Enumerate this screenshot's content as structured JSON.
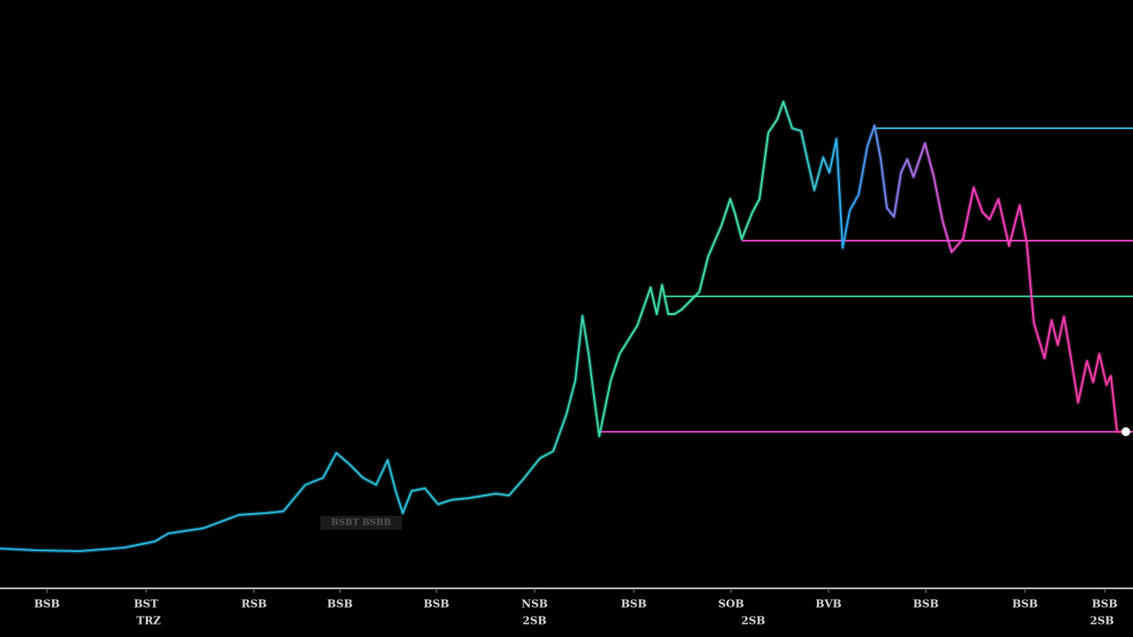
{
  "chart_data": {
    "type": "line",
    "xlim": [
      0,
      1280
    ],
    "ylim": [
      0,
      600
    ],
    "x": [
      0,
      40,
      90,
      140,
      175,
      190,
      230,
      270,
      300,
      320,
      345,
      365,
      380,
      395,
      410,
      425,
      438,
      447,
      455,
      465,
      480,
      495,
      510,
      530,
      560,
      575,
      590,
      610,
      625,
      640,
      650,
      658,
      665,
      670,
      677,
      690,
      700,
      720,
      735,
      742,
      748,
      755,
      762,
      770,
      780,
      790,
      800,
      815,
      825,
      830,
      838,
      850,
      858,
      868,
      878,
      885,
      895,
      905,
      912,
      920,
      930,
      937,
      945,
      952,
      960,
      970,
      980,
      988,
      995,
      1002,
      1010,
      1018,
      1025,
      1032,
      1045,
      1055,
      1065,
      1075,
      1088,
      1100,
      1110,
      1118,
      1128,
      1140,
      1152,
      1160,
      1168,
      1180,
      1188,
      1195,
      1202,
      1210,
      1218,
      1228,
      1235,
      1242,
      1250,
      1255,
      1262,
      1272
    ],
    "values": [
      45,
      43,
      42,
      46,
      53,
      62,
      68,
      83,
      85,
      87,
      117,
      125,
      153,
      140,
      125,
      117,
      145,
      110,
      85,
      110,
      113,
      95,
      100,
      102,
      107,
      105,
      122,
      147,
      155,
      197,
      235,
      308,
      265,
      225,
      172,
      235,
      265,
      297,
      340,
      310,
      343,
      310,
      310,
      315,
      325,
      335,
      375,
      410,
      440,
      425,
      395,
      425,
      440,
      515,
      530,
      550,
      520,
      517,
      485,
      450,
      487,
      470,
      508,
      385,
      427,
      445,
      500,
      523,
      485,
      430,
      420,
      470,
      485,
      465,
      503,
      465,
      415,
      380,
      395,
      453,
      425,
      417,
      440,
      387,
      433,
      390,
      300,
      260,
      303,
      275,
      307,
      260,
      210,
      257,
      233,
      265,
      230,
      240,
      177,
      177
    ],
    "gradient": [
      {
        "at": 0,
        "color": "#26b3e8"
      },
      {
        "at": 560,
        "color": "#2cc6d8"
      },
      {
        "at": 700,
        "color": "#3fe3a8"
      },
      {
        "at": 880,
        "color": "#45e6b0"
      },
      {
        "at": 960,
        "color": "#2fa8ff"
      },
      {
        "at": 1040,
        "color": "#b86be8"
      },
      {
        "at": 1090,
        "color": "#ff3fc4"
      },
      {
        "at": 1280,
        "color": "#ff3fa8"
      }
    ],
    "end_marker_color": "#ffffff",
    "levels": [
      {
        "value": 520,
        "start": 990,
        "color": "#2ab0d8"
      },
      {
        "value": 393,
        "start": 838,
        "color": "#e040c0"
      },
      {
        "value": 330,
        "start": 750,
        "color": "#30c890"
      },
      {
        "value": 177,
        "start": 677,
        "color": "#d83cb8"
      }
    ],
    "xticks": [
      {
        "value": 53,
        "label": "BSB"
      },
      {
        "value": 165,
        "label": "BST"
      },
      {
        "value": 287,
        "label": "RSB"
      },
      {
        "value": 384,
        "label": "BSB"
      },
      {
        "value": 493,
        "label": "BSB"
      },
      {
        "value": 604,
        "label": "NSB"
      },
      {
        "value": 716,
        "label": "BSB"
      },
      {
        "value": 826,
        "label": "SOB"
      },
      {
        "value": 936,
        "label": "BVB"
      },
      {
        "value": 1046,
        "label": "BSB"
      },
      {
        "value": 1158,
        "label": "BSB"
      },
      {
        "value": 1248,
        "label": "BSB"
      }
    ],
    "xtick_sublabels": [
      {
        "value": 168,
        "label": "TRZ"
      },
      {
        "value": 604,
        "label": "2SB"
      },
      {
        "value": 851,
        "label": "2SB"
      },
      {
        "value": 1245,
        "label": "2SB"
      }
    ],
    "annotation": {
      "x": 408,
      "y": 74,
      "text": "BSBT BSBB"
    }
  }
}
